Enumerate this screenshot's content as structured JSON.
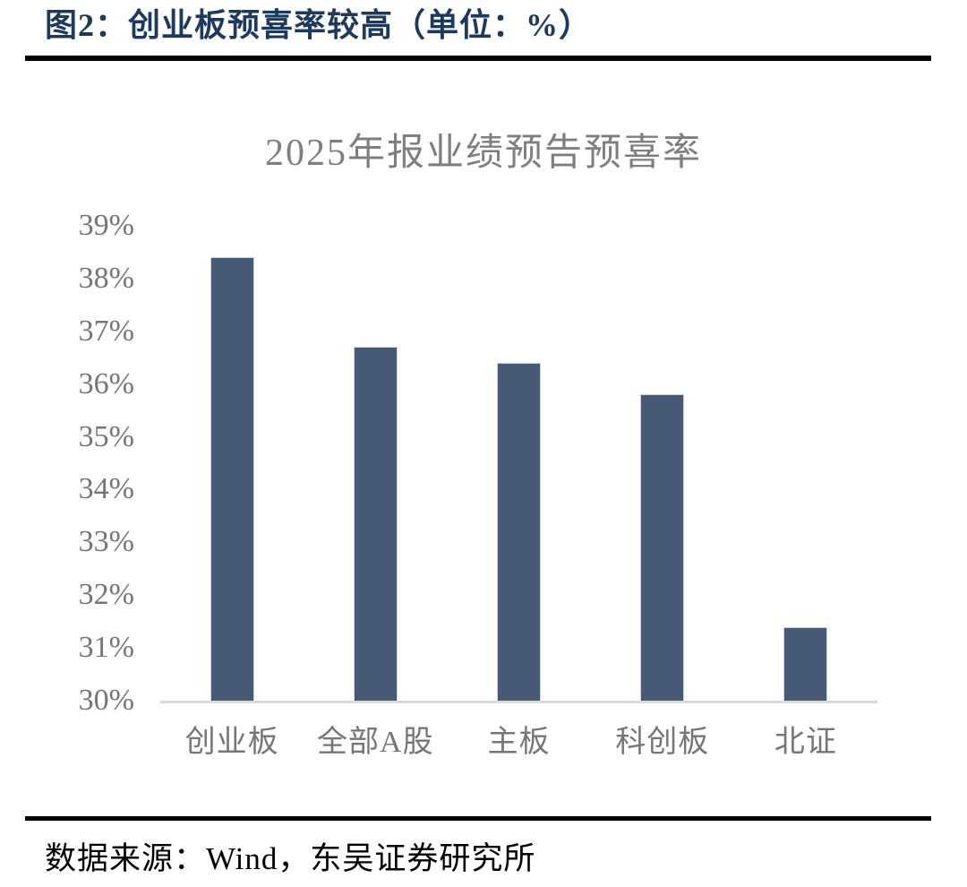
{
  "header": {
    "title": "图2：创业板预喜率较高（单位：%）"
  },
  "footer": {
    "source": "数据来源：Wind，东吴证券研究所"
  },
  "colors": {
    "header_text": "#1c3a5f",
    "rule": "#000000",
    "bar": "#465a76",
    "axis_line": "#d9d9d9",
    "axis_label": "#767676",
    "chart_title": "#7f7f7f"
  },
  "chart_data": {
    "type": "bar",
    "title": "2025年报业绩预告预喜率",
    "unit": "%",
    "categories": [
      "创业板",
      "全部A股",
      "主板",
      "科创板",
      "北证"
    ],
    "values": [
      38.4,
      36.7,
      36.4,
      35.8,
      31.4
    ],
    "ylim": [
      30,
      39
    ],
    "ytick_step": 1,
    "ytick_labels": [
      "39%",
      "38%",
      "37%",
      "36%",
      "35%",
      "34%",
      "33%",
      "32%",
      "31%",
      "30%"
    ],
    "grid": false,
    "legend": false,
    "xlabel": "",
    "ylabel": ""
  }
}
